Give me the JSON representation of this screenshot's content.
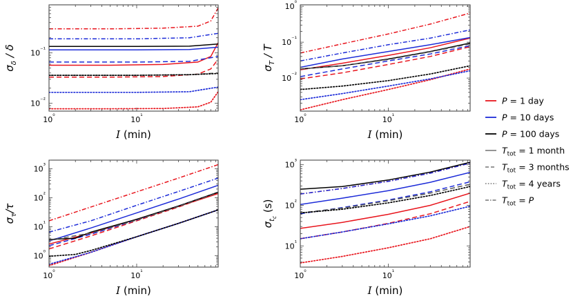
{
  "chart_data": [
    {
      "type": "line",
      "panel": "top-left",
      "ylabel": "σ_δ / δ",
      "xlabel": "𝓘 (min)",
      "x_scale": "log",
      "y_scale": "log",
      "xlim": [
        1,
        85
      ],
      "ylim": [
        0.007,
        0.9
      ],
      "x_ticks": [
        {
          "v": 1,
          "label": "10⁰"
        },
        {
          "v": 10,
          "label": "10¹"
        }
      ],
      "y_ticks": [
        {
          "v": 0.01,
          "label": "10⁻²"
        },
        {
          "v": 0.1,
          "label": "10⁻¹"
        }
      ],
      "grid": false,
      "series": [
        {
          "P": "1 day",
          "T": "1 month",
          "color": "#e8141c",
          "dash": "solid",
          "x": [
            1,
            5,
            20,
            50,
            70,
            85
          ],
          "y": [
            0.057,
            0.057,
            0.059,
            0.066,
            0.085,
            0.16
          ]
        },
        {
          "P": "1 day",
          "T": "3 months",
          "color": "#e8141c",
          "dash": "dashed",
          "x": [
            1,
            5,
            20,
            50,
            70,
            85
          ],
          "y": [
            0.033,
            0.033,
            0.034,
            0.038,
            0.048,
            0.075
          ]
        },
        {
          "P": "1 day",
          "T": "4 years",
          "color": "#e8141c",
          "dash": "dotted",
          "x": [
            1,
            5,
            20,
            50,
            70,
            85
          ],
          "y": [
            0.0078,
            0.0078,
            0.0079,
            0.0085,
            0.0105,
            0.017
          ]
        },
        {
          "P": "1 day",
          "T": "P",
          "color": "#e8141c",
          "dash": "dashdot",
          "x": [
            1,
            5,
            20,
            50,
            70,
            85
          ],
          "y": [
            0.3,
            0.3,
            0.31,
            0.34,
            0.43,
            0.78
          ]
        },
        {
          "P": "10 days",
          "T": "1 month",
          "color": "#1c2bd8",
          "dash": "solid",
          "x": [
            1,
            10,
            40,
            85
          ],
          "y": [
            0.115,
            0.115,
            0.117,
            0.13
          ]
        },
        {
          "P": "10 days",
          "T": "3 months",
          "color": "#1c2bd8",
          "dash": "dashed",
          "x": [
            1,
            10,
            40,
            85
          ],
          "y": [
            0.066,
            0.066,
            0.068,
            0.085
          ]
        },
        {
          "P": "10 days",
          "T": "4 years",
          "color": "#1c2bd8",
          "dash": "dotted",
          "x": [
            1,
            10,
            40,
            85
          ],
          "y": [
            0.0165,
            0.0165,
            0.017,
            0.021
          ]
        },
        {
          "P": "10 days",
          "T": "P",
          "color": "#1c2bd8",
          "dash": "dashdot",
          "x": [
            1,
            10,
            40,
            85
          ],
          "y": [
            0.19,
            0.19,
            0.2,
            0.245
          ]
        },
        {
          "P": "100 days",
          "T": "1 month",
          "color": "#000000",
          "dash": "solid",
          "x": [
            1,
            10,
            40,
            85
          ],
          "y": [
            0.135,
            0.135,
            0.136,
            0.15
          ]
        },
        {
          "P": "100 days",
          "T": "3 months",
          "color": "#555555",
          "dash": "dashed",
          "x": [
            1,
            10,
            40,
            85
          ],
          "y": [
            0.036,
            0.036,
            0.037,
            0.04
          ]
        },
        {
          "P": "100 days",
          "T": "4 years",
          "color": "#000000",
          "dash": "dotted",
          "x": [
            1,
            10,
            40,
            85
          ],
          "y": [
            0.036,
            0.036,
            0.037,
            0.039
          ]
        }
      ]
    },
    {
      "type": "line",
      "panel": "top-right",
      "ylabel": "σ_T / T",
      "xlabel": "𝓘 (min)",
      "x_scale": "log",
      "y_scale": "log",
      "xlim": [
        1,
        85
      ],
      "ylim": [
        0.0012,
        1.1
      ],
      "x_ticks": [
        {
          "v": 1,
          "label": "10⁰"
        },
        {
          "v": 10,
          "label": "10¹"
        }
      ],
      "y_ticks": [
        {
          "v": 0.01,
          "label": "10⁻²"
        },
        {
          "v": 0.1,
          "label": "10⁻¹"
        },
        {
          "v": 1,
          "label": "10⁰"
        }
      ],
      "grid": false,
      "series": [
        {
          "P": "1 day",
          "T": "1 month",
          "color": "#e8141c",
          "dash": "solid",
          "x": [
            1,
            3,
            10,
            30,
            85
          ],
          "y": [
            0.017,
            0.026,
            0.043,
            0.07,
            0.13
          ]
        },
        {
          "P": "1 day",
          "T": "3 months",
          "color": "#e8141c",
          "dash": "dashed",
          "x": [
            1,
            3,
            10,
            30,
            85
          ],
          "y": [
            0.0095,
            0.014,
            0.024,
            0.04,
            0.075
          ]
        },
        {
          "P": "1 day",
          "T": "4 years",
          "color": "#e8141c",
          "dash": "dotted",
          "x": [
            1,
            3,
            10,
            30,
            85
          ],
          "y": [
            0.0013,
            0.0025,
            0.0048,
            0.009,
            0.018
          ]
        },
        {
          "P": "1 day",
          "T": "P",
          "color": "#e8141c",
          "dash": "dashdot",
          "x": [
            1,
            3,
            10,
            30,
            85
          ],
          "y": [
            0.05,
            0.09,
            0.17,
            0.32,
            0.65
          ]
        },
        {
          "P": "10 days",
          "T": "1 month",
          "color": "#1c2bd8",
          "dash": "solid",
          "x": [
            1,
            3,
            10,
            30,
            85
          ],
          "y": [
            0.02,
            0.034,
            0.055,
            0.085,
            0.135
          ]
        },
        {
          "P": "10 days",
          "T": "3 months",
          "color": "#1c2bd8",
          "dash": "dashed",
          "x": [
            1,
            3,
            10,
            30,
            85
          ],
          "y": [
            0.011,
            0.018,
            0.03,
            0.047,
            0.08
          ]
        },
        {
          "P": "10 days",
          "T": "4 years",
          "color": "#1c2bd8",
          "dash": "dotted",
          "x": [
            1,
            3,
            10,
            30,
            85
          ],
          "y": [
            0.0025,
            0.0037,
            0.006,
            0.0095,
            0.016
          ]
        },
        {
          "P": "10 days",
          "T": "P",
          "color": "#1c2bd8",
          "dash": "dashdot",
          "x": [
            1,
            3,
            10,
            30,
            85
          ],
          "y": [
            0.03,
            0.05,
            0.085,
            0.13,
            0.22
          ]
        },
        {
          "P": "100 days",
          "T": "1 month",
          "color": "#000000",
          "dash": "solid",
          "x": [
            1,
            3,
            10,
            30,
            85
          ],
          "y": [
            0.018,
            0.022,
            0.034,
            0.055,
            0.095
          ]
        },
        {
          "P": "100 days",
          "T": "3 months",
          "color": "#555555",
          "dash": "dashed",
          "x": [
            1,
            3,
            10,
            30,
            85
          ],
          "y": [
            0.018,
            0.022,
            0.033,
            0.054,
            0.09
          ]
        },
        {
          "P": "100 days",
          "T": "4 years",
          "color": "#000000",
          "dash": "dotted",
          "x": [
            1,
            3,
            10,
            30,
            85
          ],
          "y": [
            0.0048,
            0.006,
            0.0085,
            0.013,
            0.022
          ]
        }
      ]
    },
    {
      "type": "line",
      "panel": "bottom-left",
      "ylabel": "σ_τ / τ",
      "xlabel": "𝓘 (min)",
      "x_scale": "log",
      "y_scale": "log",
      "xlim": [
        1,
        85
      ],
      "ylim": [
        0.4,
        2000
      ],
      "x_ticks": [
        {
          "v": 1,
          "label": "10⁰"
        },
        {
          "v": 10,
          "label": "10¹"
        }
      ],
      "y_ticks": [
        {
          "v": 1,
          "label": "10⁰"
        },
        {
          "v": 10,
          "label": "10¹"
        },
        {
          "v": 100,
          "label": "10²"
        },
        {
          "v": 1000,
          "label": "10³"
        }
      ],
      "grid": false,
      "series": [
        {
          "P": "1 day",
          "T": "1 month",
          "color": "#e8141c",
          "dash": "solid",
          "x": [
            1,
            3,
            10,
            30,
            85
          ],
          "y": [
            2.5,
            6,
            18,
            50,
            140
          ]
        },
        {
          "P": "1 day",
          "T": "3 months",
          "color": "#e8141c",
          "dash": "dashed",
          "x": [
            1,
            3,
            10,
            30,
            85
          ],
          "y": [
            1.7,
            4.8,
            16,
            48,
            150
          ]
        },
        {
          "P": "1 day",
          "T": "4 years",
          "color": "#e8141c",
          "dash": "dotted",
          "x": [
            1,
            3,
            10,
            30,
            85
          ],
          "y": [
            0.45,
            1.3,
            4.5,
            13,
            38
          ]
        },
        {
          "P": "1 day",
          "T": "P",
          "color": "#e8141c",
          "dash": "dashdot",
          "x": [
            1,
            3,
            10,
            30,
            85
          ],
          "y": [
            16,
            48,
            160,
            480,
            1400
          ]
        },
        {
          "P": "10 days",
          "T": "1 month",
          "color": "#1c2bd8",
          "dash": "solid",
          "x": [
            1,
            3,
            10,
            30,
            85
          ],
          "y": [
            3.2,
            9,
            30,
            90,
            270
          ]
        },
        {
          "P": "10 days",
          "T": "3 months",
          "color": "#1c2bd8",
          "dash": "dashed",
          "x": [
            1,
            3,
            10,
            30,
            85
          ],
          "y": [
            2.2,
            5.5,
            17,
            52,
            155
          ]
        },
        {
          "P": "10 days",
          "T": "4 years",
          "color": "#1c2bd8",
          "dash": "dotted",
          "x": [
            1,
            3,
            10,
            30,
            85
          ],
          "y": [
            0.5,
            1.3,
            4.5,
            13,
            38
          ]
        },
        {
          "P": "10 days",
          "T": "P",
          "color": "#1c2bd8",
          "dash": "dashdot",
          "x": [
            1,
            3,
            10,
            30,
            85
          ],
          "y": [
            6.5,
            16,
            55,
            165,
            480
          ]
        },
        {
          "P": "100 days",
          "T": "1 month",
          "color": "#000000",
          "dash": "solid",
          "x": [
            1,
            2,
            3,
            10,
            30,
            85
          ],
          "y": [
            3.6,
            4,
            6.5,
            18,
            52,
            155
          ]
        },
        {
          "P": "100 days",
          "T": "3 months",
          "color": "#555555",
          "dash": "dashed",
          "x": [
            1,
            3,
            10,
            30,
            85
          ],
          "y": [
            3.4,
            6,
            17,
            50,
            150
          ]
        },
        {
          "P": "100 days",
          "T": "4 years",
          "color": "#000000",
          "dash": "dotted",
          "x": [
            1,
            2,
            3,
            10,
            30,
            85
          ],
          "y": [
            0.95,
            1.1,
            1.5,
            4.5,
            13,
            38
          ]
        }
      ]
    },
    {
      "type": "line",
      "panel": "bottom-right",
      "ylabel": "σ_{t_c} (s)",
      "xlabel": "𝓘 (min)",
      "x_scale": "log",
      "y_scale": "log",
      "xlim": [
        1,
        85
      ],
      "ylim": [
        3,
        1300
      ],
      "x_ticks": [
        {
          "v": 1,
          "label": "10⁰"
        },
        {
          "v": 10,
          "label": "10¹"
        }
      ],
      "y_ticks": [
        {
          "v": 10,
          "label": "10¹"
        },
        {
          "v": 100,
          "label": "10²"
        },
        {
          "v": 1000,
          "label": "10³"
        }
      ],
      "grid": false,
      "series": [
        {
          "P": "1 day",
          "T": "1 month",
          "color": "#e8141c",
          "dash": "solid",
          "x": [
            1,
            3,
            10,
            30,
            85
          ],
          "y": [
            27,
            38,
            60,
            100,
            200
          ]
        },
        {
          "P": "1 day",
          "T": "3 months",
          "color": "#e8141c",
          "dash": "dashed",
          "x": [
            1,
            3,
            10,
            30,
            85
          ],
          "y": [
            15,
            22,
            36,
            62,
            125
          ]
        },
        {
          "P": "1 day",
          "T": "4 years",
          "color": "#e8141c",
          "dash": "dotted",
          "x": [
            1,
            3,
            10,
            30,
            85
          ],
          "y": [
            3.8,
            5.5,
            9,
            15,
            30
          ]
        },
        {
          "P": "1 day",
          "T": "P",
          "color": "#e8141c",
          "dash": "dashdot",
          "x": [
            1,
            3,
            10,
            30,
            85
          ],
          "y": [
            190,
            260,
            390,
            620,
            1100
          ]
        },
        {
          "P": "10 days",
          "T": "1 month",
          "color": "#1c2bd8",
          "dash": "solid",
          "x": [
            1,
            3,
            10,
            30,
            85
          ],
          "y": [
            105,
            150,
            230,
            370,
            650
          ]
        },
        {
          "P": "10 days",
          "T": "3 months",
          "color": "#1c2bd8",
          "dash": "dashed",
          "x": [
            1,
            3,
            10,
            30,
            85
          ],
          "y": [
            62,
            88,
            135,
            215,
            380
          ]
        },
        {
          "P": "10 days",
          "T": "4 years",
          "color": "#1c2bd8",
          "dash": "dotted",
          "x": [
            1,
            3,
            10,
            30,
            85
          ],
          "y": [
            15,
            22,
            35,
            55,
            95
          ]
        },
        {
          "P": "10 days",
          "T": "P",
          "color": "#1c2bd8",
          "dash": "dashdot",
          "x": [
            1,
            3,
            10,
            30,
            85
          ],
          "y": [
            190,
            260,
            390,
            620,
            1100
          ]
        },
        {
          "P": "100 days",
          "T": "1 month",
          "color": "#000000",
          "dash": "solid",
          "x": [
            1,
            3,
            10,
            30,
            85
          ],
          "y": [
            250,
            290,
            420,
            660,
            1150
          ]
        },
        {
          "P": "100 days",
          "T": "3 months",
          "color": "#555555",
          "dash": "dashed",
          "x": [
            1,
            3,
            10,
            30,
            85
          ],
          "y": [
            65,
            85,
            130,
            200,
            330
          ]
        },
        {
          "P": "100 days",
          "T": "4 years",
          "color": "#000000",
          "dash": "dotted",
          "x": [
            1,
            3,
            10,
            30,
            85
          ],
          "y": [
            65,
            80,
            115,
            175,
            290
          ]
        }
      ]
    }
  ],
  "legend": {
    "placement": "right",
    "entries": [
      {
        "key": "p1",
        "text": "P = 1 day",
        "color": "#e8141c",
        "dash": "solid"
      },
      {
        "key": "p10",
        "text": "P = 10 days",
        "color": "#1c2bd8",
        "dash": "solid"
      },
      {
        "key": "p100",
        "text": "P = 100 days",
        "color": "#000000",
        "dash": "solid"
      },
      {
        "key": "t1m",
        "text": "T_tot = 1 month",
        "color": "#888888",
        "dash": "solid"
      },
      {
        "key": "t3m",
        "text": "T_tot = 3 months",
        "color": "#888888",
        "dash": "dashed"
      },
      {
        "key": "t4y",
        "text": "T_tot = 4 years",
        "color": "#888888",
        "dash": "dotted"
      },
      {
        "key": "tP",
        "text": "T_tot = P",
        "color": "#888888",
        "dash": "dashdot"
      }
    ]
  }
}
